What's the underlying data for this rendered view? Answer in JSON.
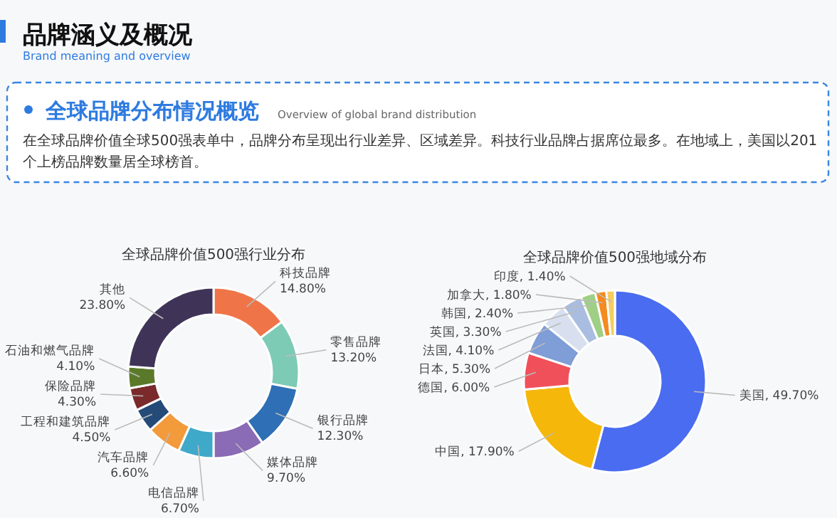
{
  "chart_data": [
    {
      "type": "other",
      "title": "品牌涵义及概况",
      "subtitle": "Brand meaning and overview",
      "annotations": [
        "全球品牌分布情况概览",
        "Overview of global brand distribution",
        "在全球品牌价值全球500强表单中，品牌分布呈现出行业差异、区域差异。科技行业品牌占据席位最多。在地域上，美国以201个上榜品牌数量居全球榜首。"
      ]
    },
    {
      "type": "donut",
      "title": "全球品牌价值500强行业分布",
      "categories": [
        "科技品牌",
        "零售品牌",
        "银行品牌",
        "媒体品牌",
        "电信品牌",
        "汽车品牌",
        "工程和建筑品牌",
        "保险品牌",
        "石油和燃气品牌",
        "其他"
      ],
      "values": [
        14.8,
        13.2,
        12.3,
        9.7,
        6.7,
        6.6,
        4.5,
        4.3,
        4.1,
        23.8
      ],
      "value_labels": [
        "14.80%",
        "13.20%",
        "12.30%",
        "9.70%",
        "6.70%",
        "6.60%",
        "4.50%",
        "4.30%",
        "4.10%",
        "23.80%"
      ],
      "colors": [
        "#ef7548",
        "#7ecbb5",
        "#2e6fb5",
        "#8a6bb5",
        "#3fa9c9",
        "#f39a3b",
        "#244a78",
        "#7a2a2a",
        "#5a7a2a",
        "#3f3458"
      ]
    },
    {
      "type": "donut",
      "title": "全球品牌价值500强地域分布",
      "categories": [
        "美国",
        "中国",
        "德国",
        "日本",
        "法国",
        "英国",
        "韩国",
        "加拿大",
        "印度"
      ],
      "values": [
        49.7,
        17.9,
        6.0,
        5.3,
        4.1,
        3.3,
        2.4,
        1.8,
        1.4
      ],
      "value_labels": [
        "49.70%",
        "17.90%",
        "6.00%",
        "5.30%",
        "4.10%",
        "3.30%",
        "2.40%",
        "1.80%",
        "1.40%"
      ],
      "colors": [
        "#4a6cf0",
        "#f5b70a",
        "#f0505a",
        "#7f9dd6",
        "#d8e0f0",
        "#a8bde0",
        "#9fcf85",
        "#f58a1e",
        "#f5cc60"
      ]
    }
  ]
}
